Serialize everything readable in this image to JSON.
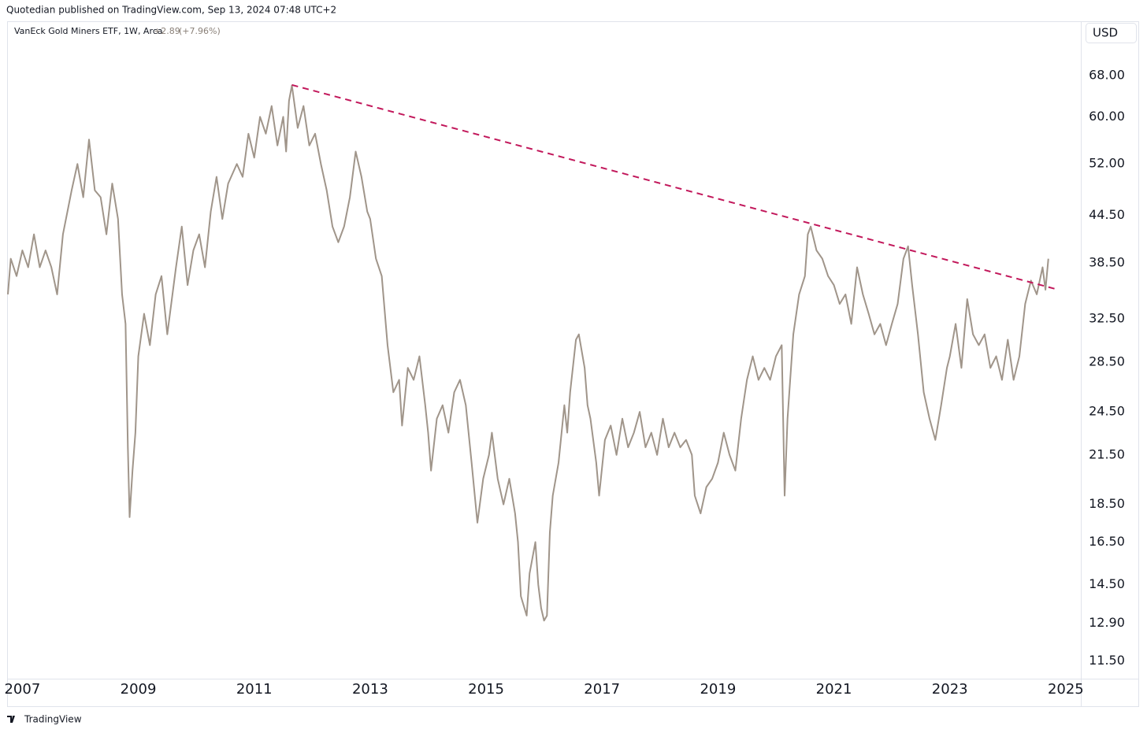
{
  "header": {
    "published": "Quotedian published on TradingView.com, Sep 13, 2024 07:48 UTC+2",
    "legend_name": "VanEck Gold Miners ETF, 1W, Arca",
    "change": "+2.89",
    "change_pct": "(+7.96%)",
    "currency": "USD"
  },
  "footer": {
    "brand": "TradingView"
  },
  "chart_data": {
    "type": "line",
    "log_scale": true,
    "grid": false,
    "xlim": [
      2006.75,
      2025.26
    ],
    "ylim": [
      10.9,
      80
    ],
    "xticks": [
      2007,
      2009,
      2011,
      2013,
      2015,
      2017,
      2019,
      2021,
      2023,
      2025
    ],
    "yticks": [
      {
        "value": 11.5,
        "label": "11.50"
      },
      {
        "value": 12.9,
        "label": "12.90"
      },
      {
        "value": 14.5,
        "label": "14.50"
      },
      {
        "value": 16.5,
        "label": "16.50"
      },
      {
        "value": 18.5,
        "label": "18.50"
      },
      {
        "value": 21.5,
        "label": "21.50"
      },
      {
        "value": 24.5,
        "label": "24.50"
      },
      {
        "value": 28.5,
        "label": "28.50"
      },
      {
        "value": 32.5,
        "label": "32.50"
      },
      {
        "value": 38.5,
        "label": "38.50"
      },
      {
        "value": 44.5,
        "label": "44.50"
      },
      {
        "value": 52,
        "label": "52.00"
      },
      {
        "value": 60,
        "label": "60.00"
      },
      {
        "value": 68,
        "label": "68.00"
      }
    ],
    "x": [
      2006.75,
      2006.8,
      2006.9,
      2007.0,
      2007.1,
      2007.2,
      2007.3,
      2007.4,
      2007.5,
      2007.6,
      2007.7,
      2007.85,
      2007.95,
      2008.05,
      2008.15,
      2008.25,
      2008.35,
      2008.45,
      2008.55,
      2008.65,
      2008.72,
      2008.78,
      2008.82,
      2008.85,
      2008.9,
      2008.95,
      2009.0,
      2009.1,
      2009.2,
      2009.3,
      2009.4,
      2009.5,
      2009.65,
      2009.75,
      2009.85,
      2009.95,
      2010.05,
      2010.15,
      2010.25,
      2010.35,
      2010.45,
      2010.55,
      2010.7,
      2010.8,
      2010.9,
      2011.0,
      2011.1,
      2011.2,
      2011.3,
      2011.4,
      2011.5,
      2011.55,
      2011.6,
      2011.65,
      2011.75,
      2011.85,
      2011.95,
      2012.05,
      2012.15,
      2012.25,
      2012.35,
      2012.45,
      2012.55,
      2012.65,
      2012.75,
      2012.85,
      2012.95,
      2013.0,
      2013.1,
      2013.2,
      2013.3,
      2013.4,
      2013.5,
      2013.55,
      2013.65,
      2013.75,
      2013.85,
      2013.95,
      2014.0,
      2014.05,
      2014.15,
      2014.25,
      2014.35,
      2014.45,
      2014.55,
      2014.65,
      2014.75,
      2014.85,
      2014.95,
      2015.05,
      2015.1,
      2015.2,
      2015.3,
      2015.4,
      2015.5,
      2015.55,
      2015.6,
      2015.7,
      2015.75,
      2015.85,
      2015.9,
      2015.95,
      2016.0,
      2016.05,
      2016.1,
      2016.15,
      2016.25,
      2016.35,
      2016.4,
      2016.45,
      2016.55,
      2016.6,
      2016.7,
      2016.75,
      2016.8,
      2016.9,
      2016.95,
      2017.05,
      2017.15,
      2017.25,
      2017.35,
      2017.45,
      2017.55,
      2017.65,
      2017.75,
      2017.85,
      2017.95,
      2018.05,
      2018.15,
      2018.25,
      2018.35,
      2018.45,
      2018.55,
      2018.6,
      2018.7,
      2018.8,
      2018.9,
      2019.0,
      2019.1,
      2019.2,
      2019.3,
      2019.4,
      2019.5,
      2019.6,
      2019.7,
      2019.8,
      2019.9,
      2020.0,
      2020.1,
      2020.15,
      2020.2,
      2020.3,
      2020.4,
      2020.5,
      2020.55,
      2020.6,
      2020.7,
      2020.8,
      2020.9,
      2021.0,
      2021.1,
      2021.2,
      2021.3,
      2021.4,
      2021.5,
      2021.6,
      2021.7,
      2021.8,
      2021.9,
      2022.0,
      2022.1,
      2022.2,
      2022.28,
      2022.35,
      2022.45,
      2022.55,
      2022.65,
      2022.75,
      2022.85,
      2022.95,
      2023.0,
      2023.1,
      2023.2,
      2023.3,
      2023.4,
      2023.5,
      2023.6,
      2023.7,
      2023.8,
      2023.9,
      2024.0,
      2024.1,
      2024.2,
      2024.3,
      2024.4,
      2024.5,
      2024.6,
      2024.65,
      2024.7
    ],
    "series": [
      {
        "name": "VanEck Gold Miners ETF",
        "color": "#a0958a",
        "values": [
          35,
          39,
          37,
          40,
          38,
          42,
          38,
          40,
          38,
          35,
          42,
          48,
          52,
          47,
          56,
          48,
          47,
          42,
          49,
          44,
          35,
          32,
          22,
          17.8,
          20.5,
          23,
          29,
          33,
          30,
          35,
          37,
          31,
          38,
          43,
          36,
          40,
          42,
          38,
          45,
          50,
          44,
          49,
          52,
          50,
          57,
          53,
          60,
          57,
          62,
          55,
          60,
          54,
          63,
          66,
          58,
          62,
          55,
          57,
          52,
          48,
          43,
          41,
          43,
          47,
          54,
          50,
          45,
          44,
          39,
          37,
          30,
          26,
          27,
          23.5,
          28,
          27,
          29,
          25,
          23,
          20.5,
          24,
          25,
          23,
          26,
          27,
          25,
          21,
          17.5,
          20,
          21.5,
          23,
          20,
          18.5,
          20,
          18,
          16.5,
          14,
          13.2,
          15,
          16.5,
          14.5,
          13.5,
          13,
          13.2,
          17,
          19,
          21,
          25,
          23,
          26,
          30.5,
          31,
          28,
          25,
          24,
          21,
          19,
          22.5,
          23.5,
          21.5,
          24,
          22,
          23,
          24.5,
          22,
          23,
          21.5,
          24,
          22,
          23,
          22,
          22.5,
          21.5,
          19,
          18,
          19.5,
          20,
          21,
          23,
          21.5,
          20.5,
          24,
          27,
          29,
          27,
          28,
          27,
          29,
          30,
          19,
          24,
          31,
          35,
          37,
          42,
          43,
          40,
          39,
          37,
          36,
          34,
          35,
          32,
          38,
          35,
          33,
          31,
          32,
          30,
          32,
          34,
          39,
          40.5,
          36,
          31,
          26,
          24,
          22.5,
          25,
          28,
          29,
          32,
          28,
          34.5,
          31,
          30,
          31,
          28,
          29,
          27,
          30.5,
          27,
          29,
          34,
          36.5,
          35,
          38,
          35.5,
          39
        ]
      }
    ],
    "trendline": {
      "x": [
        2011.65,
        2024.87
      ],
      "values": [
        66.1,
        35.5
      ],
      "color": "#c2185b"
    }
  }
}
